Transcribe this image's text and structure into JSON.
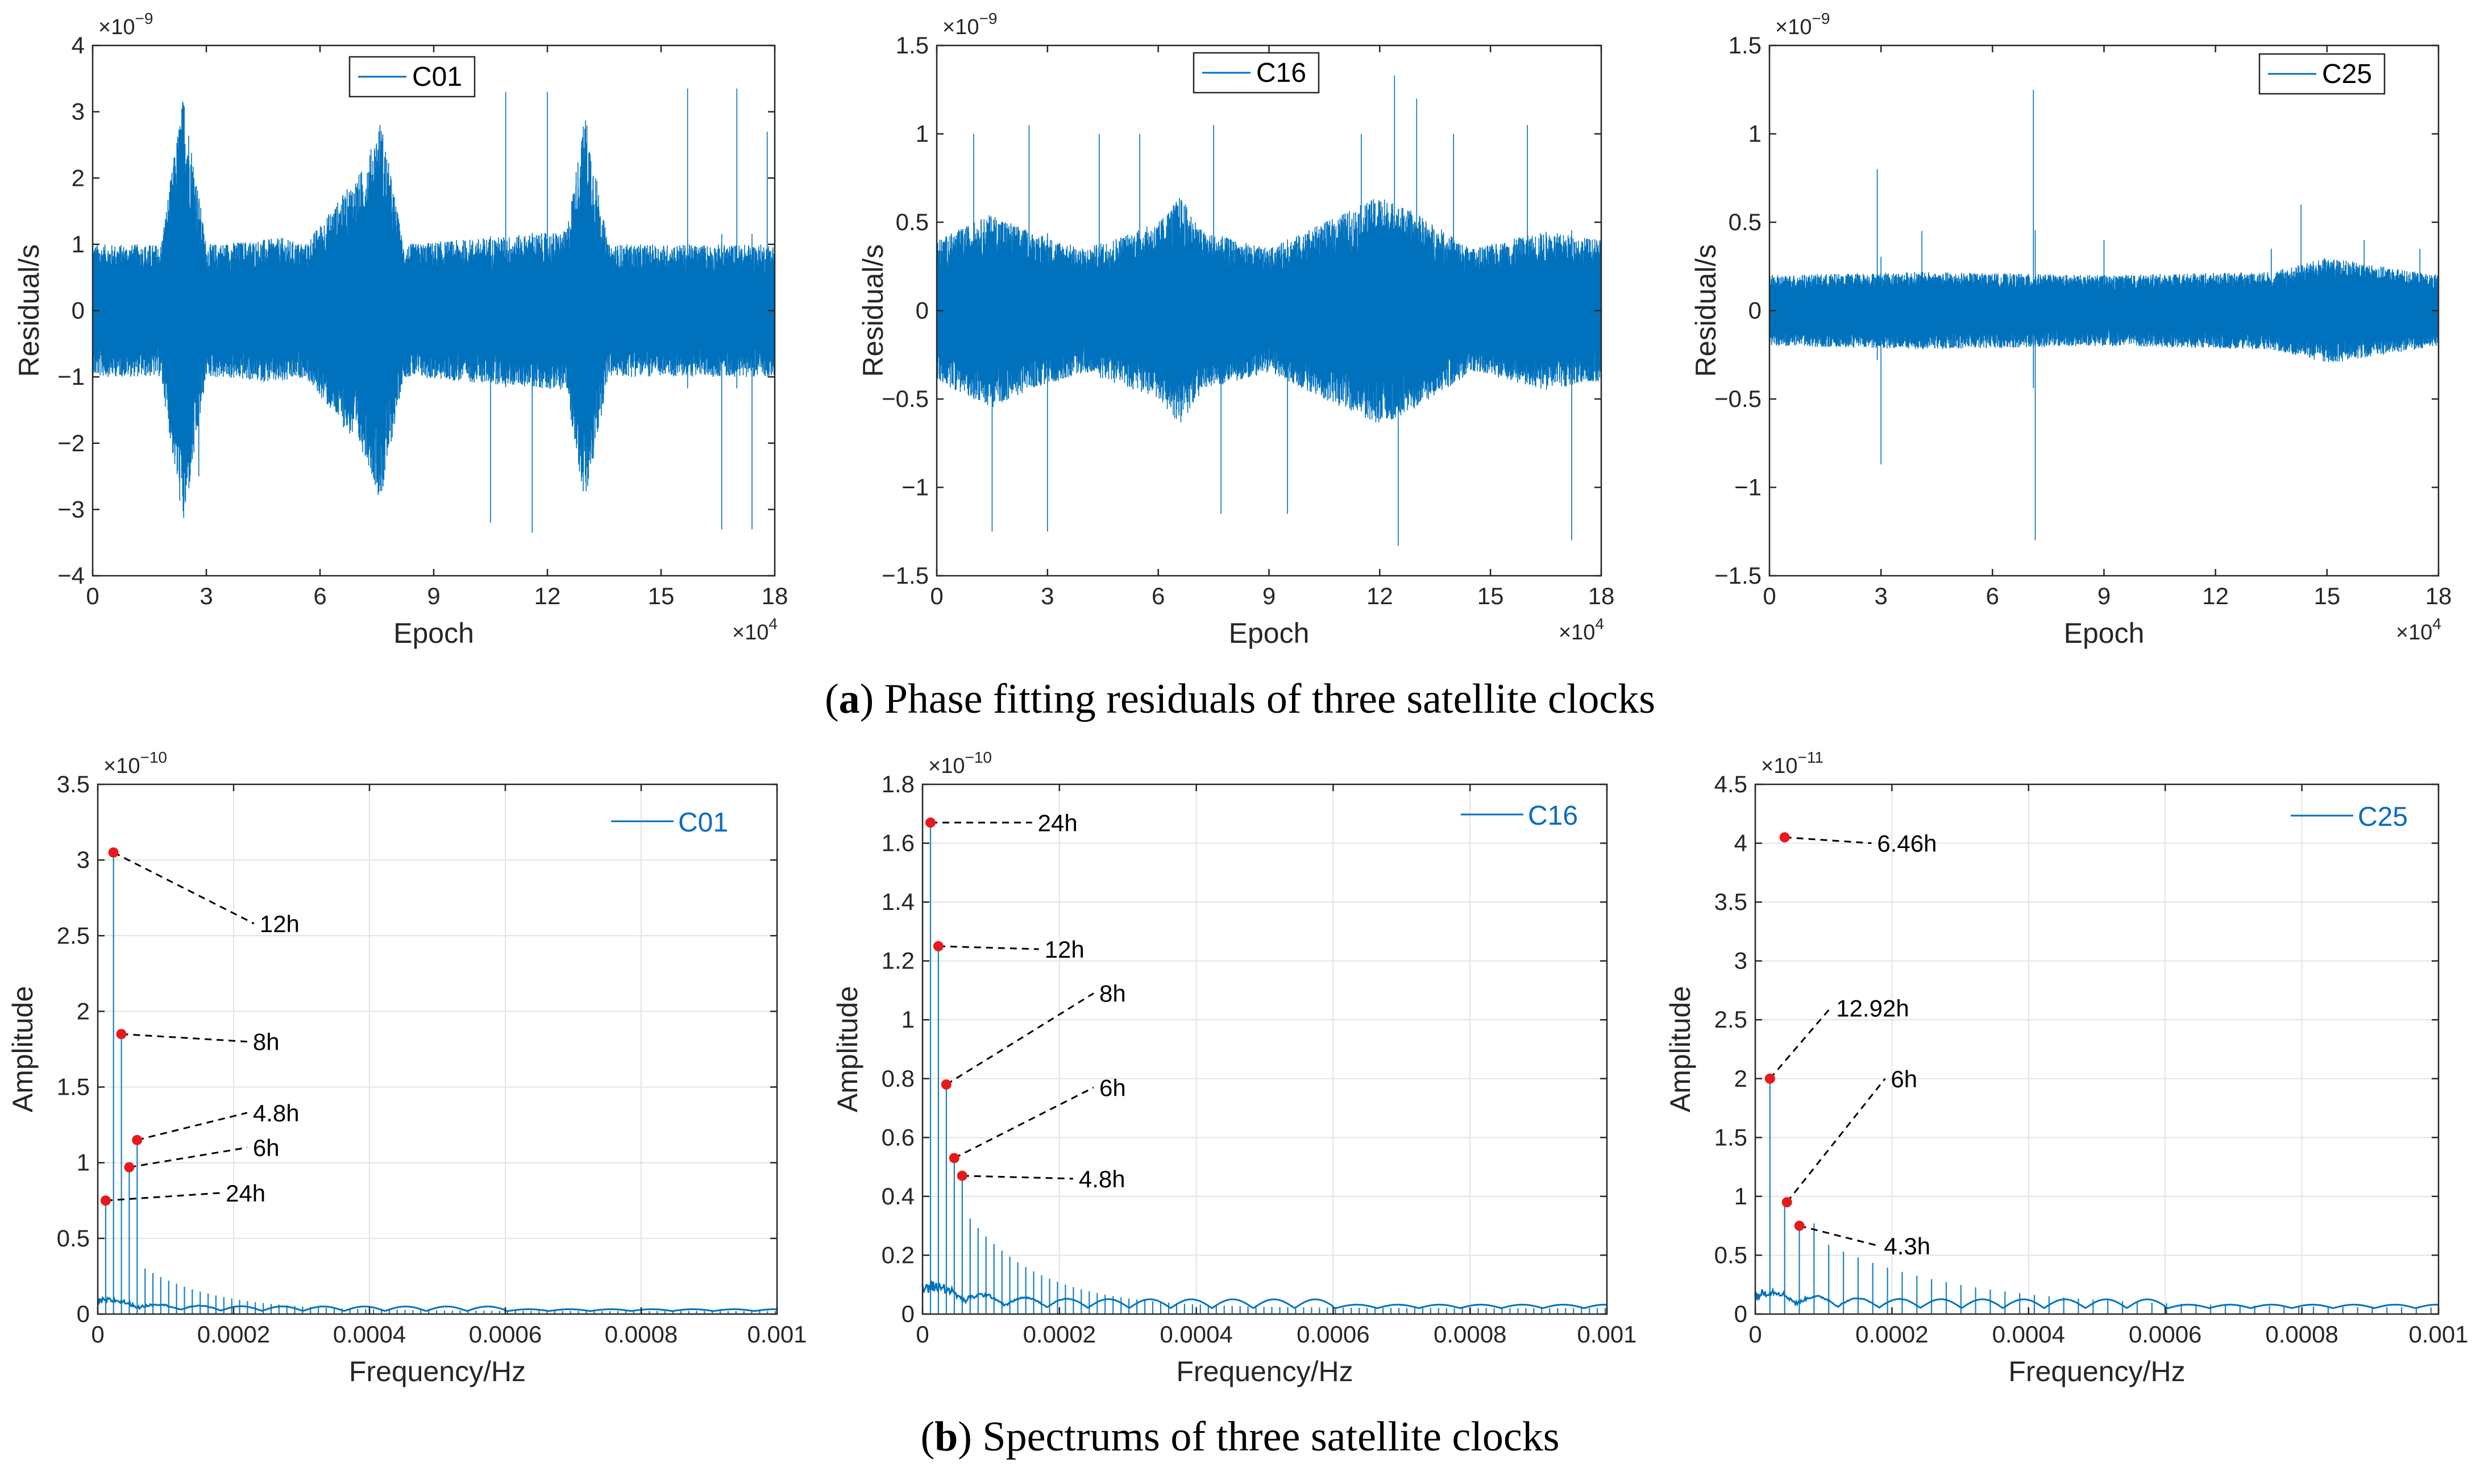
{
  "captions": [
    {
      "letter": "a",
      "text": "Phase fitting residuals of three satellite clocks"
    },
    {
      "letter": "b",
      "text": "Spectrums of three satellite clocks"
    }
  ],
  "colors": {
    "series": "#0072bd",
    "peak": "#e8191c",
    "grid": "#e3e3e3",
    "axis": "#262626",
    "legend_text_b": "#0a6cbf"
  },
  "chart_data": [
    {
      "type": "line",
      "panel": "a",
      "legend": "C01",
      "xlabel": "Epoch",
      "ylabel": "Residual/s",
      "x_exponent": "×10^4",
      "y_exponent": "×10^-9",
      "xlim": [
        0,
        18
      ],
      "ylim": [
        -4,
        4
      ],
      "xticks": [
        0,
        3,
        6,
        9,
        12,
        15,
        18
      ],
      "yticks": [
        -4,
        -3,
        -2,
        -1,
        0,
        1,
        2,
        3,
        4
      ],
      "xticklabels": [
        "0",
        "3",
        "6",
        "9",
        "12",
        "15",
        "18"
      ],
      "yticklabels": [
        "−4",
        "−3",
        "−2",
        "−1",
        "0",
        "1",
        "2",
        "3",
        "4"
      ],
      "envelope": [
        [
          0,
          1.0
        ],
        [
          1.8,
          1.0
        ],
        [
          2.4,
          3.3
        ],
        [
          3.0,
          1.0
        ],
        [
          5.0,
          1.1
        ],
        [
          5.6,
          1.0
        ],
        [
          7.2,
          2.2
        ],
        [
          7.6,
          2.9
        ],
        [
          8.2,
          1.0
        ],
        [
          12.5,
          1.2
        ],
        [
          13.0,
          3.0
        ],
        [
          13.6,
          1.0
        ],
        [
          18,
          1.0
        ]
      ],
      "spikes": [
        [
          2.8,
          -2.5
        ],
        [
          5.5,
          1.0
        ],
        [
          10.5,
          -3.2
        ],
        [
          10.9,
          3.3
        ],
        [
          11.6,
          -3.35
        ],
        [
          12.0,
          3.3
        ],
        [
          15.7,
          3.35
        ],
        [
          16.6,
          -3.3
        ],
        [
          17.0,
          3.35
        ],
        [
          17.4,
          -3.3
        ],
        [
          17.8,
          2.7
        ]
      ]
    },
    {
      "type": "line",
      "panel": "a",
      "legend": "C16",
      "xlabel": "Epoch",
      "ylabel": "Residual/s",
      "x_exponent": "×10^4",
      "y_exponent": "×10^-9",
      "xlim": [
        0,
        18
      ],
      "ylim": [
        -1.5,
        1.5
      ],
      "xticks": [
        0,
        3,
        6,
        9,
        12,
        15,
        18
      ],
      "yticks": [
        -1.5,
        -1,
        -0.5,
        0,
        0.5,
        1,
        1.5
      ],
      "xticklabels": [
        "0",
        "3",
        "6",
        "9",
        "12",
        "15",
        "18"
      ],
      "yticklabels": [
        "−1.5",
        "−1",
        "−0.5",
        "0",
        "0.5",
        "1",
        "1.5"
      ],
      "envelope": [
        [
          0,
          0.4
        ],
        [
          1.5,
          0.55
        ],
        [
          2.5,
          0.45
        ],
        [
          4.0,
          0.35
        ],
        [
          6.0,
          0.5
        ],
        [
          6.6,
          0.65
        ],
        [
          7.2,
          0.45
        ],
        [
          9.0,
          0.35
        ],
        [
          12.0,
          0.65
        ],
        [
          13.0,
          0.55
        ],
        [
          14.5,
          0.35
        ],
        [
          16.5,
          0.45
        ],
        [
          18,
          0.4
        ]
      ],
      "spikes": [
        [
          1.0,
          1.0
        ],
        [
          1.5,
          -1.25
        ],
        [
          2.5,
          1.05
        ],
        [
          3.0,
          -1.25
        ],
        [
          4.4,
          1.0
        ],
        [
          5.5,
          1.0
        ],
        [
          7.5,
          1.05
        ],
        [
          7.7,
          -1.15
        ],
        [
          9.5,
          -1.15
        ],
        [
          11.5,
          1.0
        ],
        [
          12.4,
          1.33
        ],
        [
          12.5,
          -1.33
        ],
        [
          13.0,
          1.2
        ],
        [
          14.0,
          1.0
        ],
        [
          16.0,
          1.05
        ],
        [
          17.2,
          -1.3
        ]
      ]
    },
    {
      "type": "line",
      "panel": "a",
      "legend": "C25",
      "xlabel": "Epoch",
      "ylabel": "Residual/s",
      "x_exponent": "×10^4",
      "y_exponent": "×10^-9",
      "xlim": [
        0,
        18
      ],
      "ylim": [
        -1.5,
        1.5
      ],
      "xticks": [
        0,
        3,
        6,
        9,
        12,
        15,
        18
      ],
      "yticks": [
        -1.5,
        -1,
        -0.5,
        0,
        0.5,
        1,
        1.5
      ],
      "xticklabels": [
        "0",
        "3",
        "6",
        "9",
        "12",
        "15",
        "18"
      ],
      "yticklabels": [
        "−1.5",
        "−1",
        "−0.5",
        "0",
        "0.5",
        "1",
        "1.5"
      ],
      "envelope": [
        [
          0,
          0.2
        ],
        [
          4.0,
          0.22
        ],
        [
          9.0,
          0.2
        ],
        [
          13.5,
          0.22
        ],
        [
          15.0,
          0.3
        ],
        [
          18,
          0.2
        ]
      ],
      "spikes": [
        [
          2.9,
          0.8
        ],
        [
          3.0,
          -0.87
        ],
        [
          4.1,
          0.45
        ],
        [
          7.1,
          1.25
        ],
        [
          7.15,
          -1.3
        ],
        [
          9.0,
          0.4
        ],
        [
          13.5,
          0.35
        ],
        [
          14.3,
          0.6
        ],
        [
          16.0,
          0.4
        ],
        [
          17.5,
          0.35
        ]
      ]
    },
    {
      "type": "line",
      "panel": "b",
      "legend": "C01",
      "xlabel": "Frequency/Hz",
      "ylabel": "Amplitude",
      "y_exponent": "×10^-10",
      "xlim": [
        0,
        0.001
      ],
      "ylim": [
        0,
        3.5
      ],
      "xticks": [
        0,
        0.0002,
        0.0004,
        0.0006,
        0.0008,
        0.001
      ],
      "yticks": [
        0,
        0.5,
        1,
        1.5,
        2,
        2.5,
        3,
        3.5
      ],
      "xticklabels": [
        "0",
        "0.0002",
        "0.0004",
        "0.0006",
        "0.0008",
        "0.001"
      ],
      "yticklabels": [
        "0",
        "0.5",
        "1",
        "1.5",
        "2",
        "2.5",
        "3",
        "3.5"
      ],
      "fundamental": 1.16e-05,
      "decay_peak": 0.35,
      "floor": 0.02,
      "peaks": [
        {
          "label": "24h",
          "x": 1.16e-05,
          "y": 0.75,
          "lx": 0.00018,
          "ly": 0.8
        },
        {
          "label": "12h",
          "x": 2.31e-05,
          "y": 3.05,
          "lx": 0.00023,
          "ly": 2.58
        },
        {
          "label": "8h",
          "x": 3.47e-05,
          "y": 1.85,
          "lx": 0.00022,
          "ly": 1.8
        },
        {
          "label": "6h",
          "x": 4.63e-05,
          "y": 0.97,
          "lx": 0.00022,
          "ly": 1.1
        },
        {
          "label": "4.8h",
          "x": 5.79e-05,
          "y": 1.15,
          "lx": 0.00022,
          "ly": 1.33
        }
      ]
    },
    {
      "type": "line",
      "panel": "b",
      "legend": "C16",
      "xlabel": "Frequency/Hz",
      "ylabel": "Amplitude",
      "y_exponent": "×10^-10",
      "xlim": [
        0,
        0.001
      ],
      "ylim": [
        0,
        1.8
      ],
      "xticks": [
        0,
        0.0002,
        0.0004,
        0.0006,
        0.0008,
        0.001
      ],
      "yticks": [
        0,
        0.2,
        0.4,
        0.6,
        0.8,
        1,
        1.2,
        1.4,
        1.6,
        1.8
      ],
      "xticklabels": [
        "0",
        "0.0002",
        "0.0004",
        "0.0006",
        "0.0008",
        "0.001"
      ],
      "yticklabels": [
        "0",
        "0.2",
        "0.4",
        "0.6",
        "0.8",
        "1",
        "1.2",
        "1.4",
        "1.6",
        "1.8"
      ],
      "fundamental": 1.16e-05,
      "decay_peak": 0.38,
      "floor": 0.02,
      "peaks": [
        {
          "label": "24h",
          "x": 1.16e-05,
          "y": 1.67,
          "lx": 0.00016,
          "ly": 1.67
        },
        {
          "label": "12h",
          "x": 2.31e-05,
          "y": 1.25,
          "lx": 0.00017,
          "ly": 1.24
        },
        {
          "label": "8h",
          "x": 3.47e-05,
          "y": 0.78,
          "lx": 0.00025,
          "ly": 1.09
        },
        {
          "label": "6h",
          "x": 4.63e-05,
          "y": 0.53,
          "lx": 0.00025,
          "ly": 0.77
        },
        {
          "label": "4.8h",
          "x": 5.79e-05,
          "y": 0.47,
          "lx": 0.00022,
          "ly": 0.46
        }
      ]
    },
    {
      "type": "line",
      "panel": "b",
      "legend": "C25",
      "xlabel": "Frequency/Hz",
      "ylabel": "Amplitude",
      "y_exponent": "×10^-11",
      "xlim": [
        0,
        0.001
      ],
      "ylim": [
        0,
        4.5
      ],
      "xticks": [
        0,
        0.0002,
        0.0004,
        0.0006,
        0.0008,
        0.001
      ],
      "yticks": [
        0,
        0.5,
        1,
        1.5,
        2,
        2.5,
        3,
        3.5,
        4,
        4.5
      ],
      "xticklabels": [
        "0",
        "0.0002",
        "0.0004",
        "0.0006",
        "0.0008",
        "0.001"
      ],
      "yticklabels": [
        "0",
        "0.5",
        "1",
        "1.5",
        "2",
        "2.5",
        "3",
        "3.5",
        "4",
        "4.5"
      ],
      "fundamental": 2.15e-05,
      "decay_peak": 0.6,
      "floor": 0.05,
      "peaks": [
        {
          "label": "12.92h",
          "x": 2.15e-05,
          "y": 2.0,
          "lx": 0.00011,
          "ly": 2.6
        },
        {
          "label": "6.46h",
          "x": 4.3e-05,
          "y": 4.05,
          "lx": 0.00017,
          "ly": 4.0
        },
        {
          "label": "6h",
          "x": 4.63e-05,
          "y": 0.95,
          "lx": 0.00019,
          "ly": 2.0
        },
        {
          "label": "4.3h",
          "x": 6.46e-05,
          "y": 0.75,
          "lx": 0.00018,
          "ly": 0.58
        }
      ]
    }
  ]
}
